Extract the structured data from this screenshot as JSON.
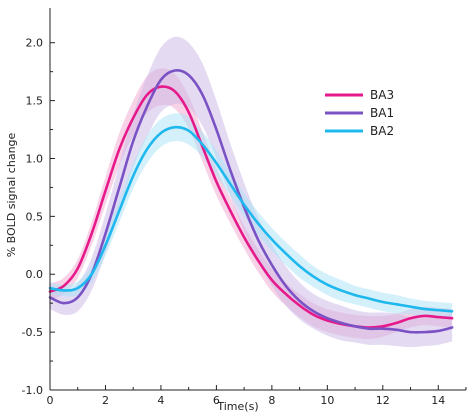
{
  "chart_data": {
    "type": "line",
    "xlabel": "Time(s)",
    "ylabel": "% BOLD signal change",
    "xlim": [
      0,
      15
    ],
    "ylim": [
      -1.0,
      2.3
    ],
    "xticks": [
      0,
      2,
      4,
      6,
      8,
      10,
      12,
      14
    ],
    "yticks": [
      -1.0,
      -0.5,
      0.0,
      0.5,
      1.0,
      1.5,
      2.0
    ],
    "xtick_labels": [
      "0",
      "2",
      "4",
      "6",
      "8",
      "10",
      "12",
      "14"
    ],
    "ytick_labels": [
      "-1.0",
      "-0.5",
      "0.0",
      "0.5",
      "1.0",
      "1.5",
      "2.0"
    ],
    "legend_position": "upper-right",
    "grid": false,
    "shaded_error_bands": true,
    "series": [
      {
        "name": "BA3",
        "color": "#e6198a",
        "band_color": "#f2a5cf",
        "x": [
          0,
          0.5,
          1,
          1.5,
          2,
          2.5,
          3,
          3.5,
          4,
          4.5,
          5,
          5.5,
          6,
          6.5,
          7,
          7.5,
          8,
          8.5,
          9,
          9.5,
          10,
          10.5,
          11,
          11.5,
          12,
          12.5,
          13,
          13.5,
          14,
          14.5
        ],
        "values": [
          -0.15,
          -0.1,
          0.05,
          0.35,
          0.72,
          1.08,
          1.35,
          1.55,
          1.62,
          1.58,
          1.4,
          1.1,
          0.8,
          0.55,
          0.32,
          0.12,
          -0.05,
          -0.17,
          -0.27,
          -0.35,
          -0.4,
          -0.43,
          -0.45,
          -0.46,
          -0.45,
          -0.42,
          -0.38,
          -0.36,
          -0.37,
          -0.38
        ],
        "band": [
          0.07,
          0.07,
          0.08,
          0.1,
          0.12,
          0.14,
          0.15,
          0.16,
          0.16,
          0.15,
          0.14,
          0.13,
          0.12,
          0.11,
          0.1,
          0.1,
          0.1,
          0.1,
          0.1,
          0.1,
          0.1,
          0.1,
          0.1,
          0.1,
          0.09,
          0.08,
          0.08,
          0.08,
          0.08,
          0.08
        ]
      },
      {
        "name": "BA1",
        "color": "#7b52c4",
        "band_color": "#c9b8e8",
        "x": [
          0,
          0.5,
          1,
          1.5,
          2,
          2.5,
          3,
          3.5,
          4,
          4.5,
          5,
          5.5,
          6,
          6.5,
          7,
          7.5,
          8,
          8.5,
          9,
          9.5,
          10,
          10.5,
          11,
          11.5,
          12,
          12.5,
          13,
          13.5,
          14,
          14.5
        ],
        "values": [
          -0.2,
          -0.25,
          -0.2,
          0.0,
          0.35,
          0.75,
          1.15,
          1.45,
          1.68,
          1.76,
          1.72,
          1.55,
          1.25,
          0.9,
          0.58,
          0.3,
          0.08,
          -0.1,
          -0.23,
          -0.32,
          -0.38,
          -0.42,
          -0.45,
          -0.47,
          -0.47,
          -0.48,
          -0.5,
          -0.5,
          -0.49,
          -0.46
        ],
        "band": [
          0.1,
          0.1,
          0.12,
          0.14,
          0.17,
          0.2,
          0.23,
          0.26,
          0.28,
          0.29,
          0.28,
          0.27,
          0.25,
          0.23,
          0.21,
          0.19,
          0.18,
          0.17,
          0.16,
          0.15,
          0.15,
          0.15,
          0.14,
          0.14,
          0.14,
          0.14,
          0.13,
          0.12,
          0.12,
          0.12
        ]
      },
      {
        "name": "BA2",
        "color": "#1fb8ee",
        "band_color": "#a9e3f7",
        "x": [
          0,
          0.5,
          1,
          1.5,
          2,
          2.5,
          3,
          3.5,
          4,
          4.5,
          5,
          5.5,
          6,
          6.5,
          7,
          7.5,
          8,
          8.5,
          9,
          9.5,
          10,
          10.5,
          11,
          11.5,
          12,
          12.5,
          13,
          13.5,
          14,
          14.5
        ],
        "values": [
          -0.12,
          -0.14,
          -0.12,
          0.0,
          0.25,
          0.55,
          0.85,
          1.08,
          1.22,
          1.27,
          1.24,
          1.12,
          0.96,
          0.78,
          0.6,
          0.44,
          0.3,
          0.18,
          0.07,
          -0.02,
          -0.09,
          -0.14,
          -0.18,
          -0.21,
          -0.24,
          -0.26,
          -0.28,
          -0.3,
          -0.31,
          -0.32
        ],
        "band": [
          0.05,
          0.05,
          0.06,
          0.07,
          0.09,
          0.1,
          0.11,
          0.12,
          0.12,
          0.12,
          0.12,
          0.11,
          0.11,
          0.1,
          0.1,
          0.1,
          0.1,
          0.1,
          0.1,
          0.09,
          0.09,
          0.09,
          0.08,
          0.08,
          0.08,
          0.08,
          0.07,
          0.07,
          0.07,
          0.07
        ]
      }
    ]
  }
}
